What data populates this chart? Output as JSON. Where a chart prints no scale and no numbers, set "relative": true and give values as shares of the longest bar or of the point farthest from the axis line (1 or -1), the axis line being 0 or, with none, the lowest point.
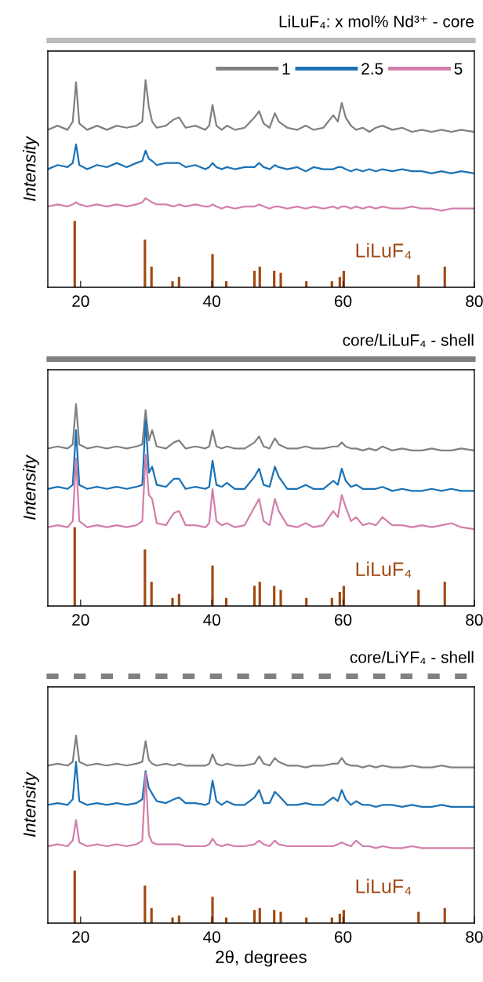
{
  "chart_data": [
    {
      "type": "line",
      "title": "LiLuF₄: x mol% Nd³⁺ - core",
      "ylabel": "Intensity",
      "relative": true,
      "xlim": [
        15,
        80
      ],
      "xticks": [
        20,
        40,
        60,
        80
      ],
      "legend": "top right",
      "x": [
        15,
        16.5,
        18,
        18.8,
        19.3,
        19.8,
        21,
        22.5,
        24,
        25.5,
        27,
        28.5,
        29.4,
        29.9,
        30.4,
        30.9,
        31.6,
        33,
        34.2,
        35,
        36,
        37.5,
        39,
        39.6,
        40.1,
        40.7,
        41.5,
        42.3,
        43.5,
        45,
        46.5,
        47.2,
        47.9,
        48.8,
        49.6,
        50.2,
        51.5,
        53,
        54.3,
        55.5,
        57,
        58.5,
        59.2,
        59.8,
        60.4,
        61.2,
        62,
        63,
        64,
        65,
        66,
        67.5,
        69,
        70.5,
        72,
        73.5,
        75,
        76.5,
        78,
        80
      ],
      "series": [
        {
          "name": "1",
          "color": "#808080",
          "values": [
            0.76,
            0.78,
            0.76,
            0.8,
            0.99,
            0.79,
            0.76,
            0.78,
            0.76,
            0.78,
            0.77,
            0.78,
            0.8,
            1.0,
            0.87,
            0.8,
            0.77,
            0.78,
            0.81,
            0.82,
            0.77,
            0.78,
            0.76,
            0.78,
            0.88,
            0.78,
            0.76,
            0.78,
            0.76,
            0.77,
            0.82,
            0.85,
            0.79,
            0.77,
            0.84,
            0.8,
            0.77,
            0.76,
            0.78,
            0.76,
            0.77,
            0.83,
            0.8,
            0.89,
            0.82,
            0.78,
            0.76,
            0.77,
            0.75,
            0.77,
            0.78,
            0.76,
            0.77,
            0.75,
            0.76,
            0.75,
            0.76,
            0.75,
            0.76,
            0.75
          ]
        },
        {
          "name": "2.5",
          "color": "#1a72b6",
          "values": [
            0.57,
            0.59,
            0.58,
            0.6,
            0.69,
            0.59,
            0.57,
            0.59,
            0.58,
            0.6,
            0.58,
            0.6,
            0.61,
            0.66,
            0.62,
            0.61,
            0.59,
            0.6,
            0.6,
            0.6,
            0.58,
            0.59,
            0.57,
            0.58,
            0.6,
            0.58,
            0.57,
            0.58,
            0.57,
            0.58,
            0.58,
            0.6,
            0.58,
            0.57,
            0.59,
            0.58,
            0.57,
            0.58,
            0.56,
            0.58,
            0.57,
            0.57,
            0.58,
            0.58,
            0.57,
            0.56,
            0.57,
            0.56,
            0.57,
            0.56,
            0.57,
            0.56,
            0.57,
            0.56,
            0.56,
            0.55,
            0.56,
            0.55,
            0.56,
            0.55
          ]
        },
        {
          "name": "5",
          "color": "#d27fab",
          "values": [
            0.39,
            0.4,
            0.39,
            0.4,
            0.41,
            0.4,
            0.39,
            0.4,
            0.39,
            0.4,
            0.39,
            0.4,
            0.41,
            0.43,
            0.42,
            0.41,
            0.4,
            0.4,
            0.39,
            0.4,
            0.39,
            0.4,
            0.39,
            0.39,
            0.4,
            0.39,
            0.38,
            0.39,
            0.38,
            0.39,
            0.39,
            0.4,
            0.39,
            0.38,
            0.39,
            0.39,
            0.38,
            0.39,
            0.38,
            0.39,
            0.38,
            0.39,
            0.38,
            0.39,
            0.39,
            0.38,
            0.39,
            0.38,
            0.39,
            0.38,
            0.39,
            0.38,
            0.38,
            0.39,
            0.38,
            0.38,
            0.37,
            0.38,
            0.38,
            0.38
          ]
        },
        {
          "name": "LiLuF₄",
          "type": "bar",
          "color": "#a04a14",
          "x": [
            19.1,
            29.8,
            30.8,
            34.0,
            35.0,
            40.1,
            42.2,
            46.5,
            47.3,
            49.5,
            50.5,
            54.4,
            58.3,
            59.5,
            60.1,
            71.5,
            75.5
          ],
          "values": [
            0.32,
            0.23,
            0.1,
            0.03,
            0.05,
            0.16,
            0.03,
            0.08,
            0.1,
            0.08,
            0.07,
            0.03,
            0.03,
            0.05,
            0.08,
            0.06,
            0.1
          ]
        }
      ]
    },
    {
      "type": "line",
      "title": "core/LiLuF₄ - shell",
      "ylabel": "Intensity",
      "relative": true,
      "xlim": [
        15,
        80
      ],
      "xticks": [
        20,
        40,
        60,
        80
      ],
      "x": [
        15,
        16.5,
        18,
        18.8,
        19.3,
        19.8,
        21,
        22.5,
        24,
        25.5,
        27,
        28.5,
        29.4,
        29.9,
        30.4,
        30.9,
        31.6,
        33,
        34.2,
        35,
        36,
        37.5,
        39,
        39.6,
        40.1,
        40.7,
        41.5,
        42.3,
        43.5,
        45,
        46.5,
        47.2,
        47.9,
        48.8,
        49.6,
        50.2,
        51.5,
        53,
        54.3,
        55.5,
        57,
        58.5,
        59.2,
        59.8,
        60.4,
        61.2,
        62,
        63,
        64,
        65,
        66,
        67.5,
        69,
        70.5,
        72,
        73.5,
        75,
        76.5,
        78,
        80
      ],
      "series": [
        {
          "color": "#808080",
          "values": [
            0.78,
            0.79,
            0.78,
            0.8,
            1.0,
            0.8,
            0.78,
            0.79,
            0.78,
            0.79,
            0.78,
            0.79,
            0.8,
            0.97,
            0.82,
            0.87,
            0.79,
            0.78,
            0.81,
            0.82,
            0.78,
            0.79,
            0.78,
            0.79,
            0.87,
            0.79,
            0.78,
            0.79,
            0.78,
            0.78,
            0.81,
            0.84,
            0.79,
            0.78,
            0.83,
            0.8,
            0.78,
            0.78,
            0.79,
            0.78,
            0.78,
            0.79,
            0.79,
            0.81,
            0.79,
            0.78,
            0.78,
            0.77,
            0.78,
            0.77,
            0.79,
            0.77,
            0.78,
            0.77,
            0.77,
            0.78,
            0.77,
            0.77,
            0.78,
            0.77
          ]
        },
        {
          "color": "#1a72b6",
          "values": [
            0.58,
            0.59,
            0.58,
            0.6,
            0.87,
            0.6,
            0.58,
            0.59,
            0.58,
            0.59,
            0.58,
            0.59,
            0.6,
            0.92,
            0.66,
            0.69,
            0.6,
            0.59,
            0.63,
            0.63,
            0.58,
            0.59,
            0.58,
            0.59,
            0.72,
            0.6,
            0.59,
            0.61,
            0.58,
            0.58,
            0.64,
            0.68,
            0.6,
            0.59,
            0.69,
            0.64,
            0.58,
            0.58,
            0.6,
            0.58,
            0.58,
            0.62,
            0.6,
            0.68,
            0.62,
            0.59,
            0.6,
            0.58,
            0.58,
            0.58,
            0.59,
            0.57,
            0.58,
            0.57,
            0.57,
            0.58,
            0.57,
            0.58,
            0.57,
            0.57
          ]
        },
        {
          "color": "#d27fab",
          "values": [
            0.39,
            0.4,
            0.39,
            0.42,
            0.73,
            0.42,
            0.39,
            0.4,
            0.39,
            0.4,
            0.39,
            0.4,
            0.42,
            0.75,
            0.55,
            0.53,
            0.41,
            0.4,
            0.46,
            0.47,
            0.4,
            0.4,
            0.39,
            0.41,
            0.58,
            0.42,
            0.4,
            0.41,
            0.39,
            0.4,
            0.49,
            0.53,
            0.42,
            0.4,
            0.53,
            0.47,
            0.4,
            0.39,
            0.41,
            0.39,
            0.4,
            0.47,
            0.44,
            0.55,
            0.49,
            0.42,
            0.44,
            0.4,
            0.41,
            0.4,
            0.44,
            0.4,
            0.4,
            0.39,
            0.4,
            0.39,
            0.4,
            0.41,
            0.39,
            0.38
          ]
        },
        {
          "name": "LiLuF₄",
          "type": "bar",
          "color": "#a04a14",
          "x": [
            19.1,
            29.8,
            30.8,
            34.0,
            35.0,
            40.1,
            42.2,
            46.5,
            47.3,
            49.5,
            50.5,
            54.4,
            58.3,
            59.5,
            60.1,
            71.5,
            75.5
          ],
          "values": [
            0.39,
            0.28,
            0.12,
            0.04,
            0.06,
            0.2,
            0.04,
            0.1,
            0.12,
            0.1,
            0.08,
            0.04,
            0.04,
            0.07,
            0.1,
            0.08,
            0.12
          ]
        }
      ]
    },
    {
      "type": "line",
      "title": "core/LiYF₄ - shell",
      "xlabel": "2θ, degrees",
      "ylabel": "Intensity",
      "relative": true,
      "xlim": [
        15,
        80
      ],
      "xticks": [
        20,
        40,
        60,
        80
      ],
      "x": [
        15,
        16.5,
        18,
        18.8,
        19.3,
        19.8,
        21,
        22.5,
        24,
        25.5,
        27,
        28.5,
        29.4,
        29.9,
        30.4,
        30.9,
        31.6,
        33,
        34.2,
        35,
        36,
        37.5,
        39,
        39.6,
        40.1,
        40.7,
        41.5,
        42.3,
        43.5,
        45,
        46.5,
        47.2,
        47.9,
        48.8,
        49.6,
        50.2,
        51.5,
        53,
        54.3,
        55.5,
        57,
        58.5,
        59.2,
        59.8,
        60.4,
        61.2,
        62,
        63,
        64,
        65,
        66,
        67.5,
        69,
        70.5,
        72,
        73.5,
        75,
        76.5,
        78,
        80
      ],
      "series": [
        {
          "color": "#808080",
          "values": [
            0.84,
            0.85,
            0.84,
            0.86,
            1.0,
            0.86,
            0.84,
            0.85,
            0.84,
            0.85,
            0.84,
            0.85,
            0.86,
            0.97,
            0.87,
            0.85,
            0.84,
            0.85,
            0.84,
            0.85,
            0.84,
            0.84,
            0.84,
            0.85,
            0.9,
            0.85,
            0.84,
            0.85,
            0.84,
            0.84,
            0.85,
            0.89,
            0.85,
            0.84,
            0.88,
            0.86,
            0.84,
            0.84,
            0.83,
            0.84,
            0.84,
            0.85,
            0.85,
            0.88,
            0.85,
            0.84,
            0.84,
            0.83,
            0.84,
            0.83,
            0.84,
            0.83,
            0.83,
            0.84,
            0.83,
            0.83,
            0.84,
            0.83,
            0.83,
            0.83
          ]
        },
        {
          "color": "#1a72b6",
          "values": [
            0.63,
            0.64,
            0.63,
            0.66,
            0.86,
            0.65,
            0.63,
            0.64,
            0.63,
            0.64,
            0.63,
            0.64,
            0.66,
            0.81,
            0.72,
            0.69,
            0.65,
            0.64,
            0.66,
            0.67,
            0.64,
            0.64,
            0.63,
            0.64,
            0.76,
            0.65,
            0.63,
            0.65,
            0.63,
            0.63,
            0.67,
            0.71,
            0.64,
            0.64,
            0.7,
            0.68,
            0.63,
            0.63,
            0.64,
            0.63,
            0.63,
            0.67,
            0.65,
            0.71,
            0.66,
            0.63,
            0.65,
            0.63,
            0.63,
            0.62,
            0.63,
            0.63,
            0.62,
            0.63,
            0.62,
            0.62,
            0.63,
            0.62,
            0.62,
            0.62
          ]
        },
        {
          "color": "#d27fab",
          "values": [
            0.41,
            0.42,
            0.41,
            0.44,
            0.55,
            0.43,
            0.41,
            0.42,
            0.41,
            0.42,
            0.41,
            0.42,
            0.44,
            0.8,
            0.47,
            0.43,
            0.42,
            0.42,
            0.42,
            0.42,
            0.41,
            0.41,
            0.41,
            0.42,
            0.45,
            0.42,
            0.41,
            0.42,
            0.41,
            0.41,
            0.42,
            0.44,
            0.42,
            0.41,
            0.44,
            0.42,
            0.41,
            0.41,
            0.41,
            0.41,
            0.41,
            0.41,
            0.42,
            0.43,
            0.42,
            0.41,
            0.44,
            0.41,
            0.41,
            0.4,
            0.41,
            0.4,
            0.4,
            0.41,
            0.4,
            0.4,
            0.4,
            0.4,
            0.4,
            0.4
          ]
        },
        {
          "name": "LiLuF₄",
          "type": "bar",
          "color": "#a04a14",
          "x": [
            19.1,
            29.8,
            30.8,
            34.0,
            35.0,
            40.1,
            42.2,
            46.5,
            47.3,
            49.5,
            50.5,
            54.4,
            58.3,
            59.5,
            60.1,
            71.5,
            75.5
          ],
          "values": [
            0.28,
            0.2,
            0.08,
            0.03,
            0.04,
            0.14,
            0.03,
            0.07,
            0.08,
            0.07,
            0.06,
            0.03,
            0.03,
            0.05,
            0.07,
            0.06,
            0.08
          ]
        }
      ]
    }
  ]
}
